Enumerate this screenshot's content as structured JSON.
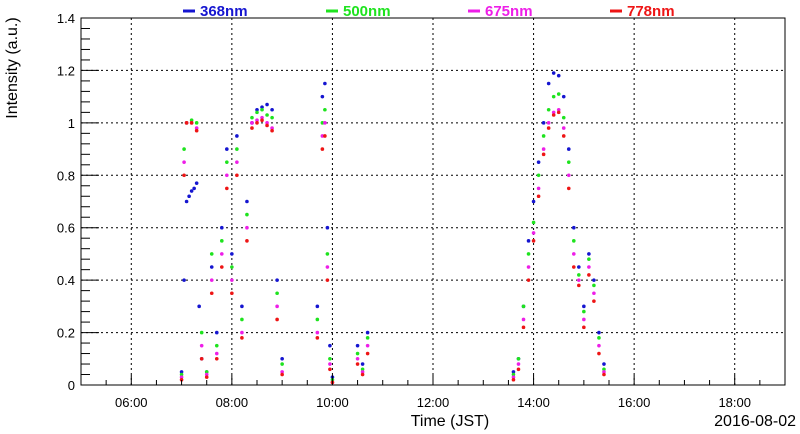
{
  "chart_data": {
    "type": "scatter",
    "title": "",
    "xlabel": "Time (JST)",
    "ylabel": "Intensity (a.u.)",
    "date_label": "2016-08-02",
    "x_unit": "hours (JST)",
    "xlim": [
      5.0,
      19.0
    ],
    "ylim": [
      0,
      1.4
    ],
    "x_tick_values": [
      6,
      8,
      10,
      12,
      14,
      16,
      18
    ],
    "x_tick_labels": [
      "06:00",
      "08:00",
      "10:00",
      "12:00",
      "14:00",
      "16:00",
      "18:00"
    ],
    "y_tick_values": [
      0,
      0.2,
      0.4,
      0.6,
      0.8,
      1,
      1.2,
      1.4
    ],
    "y_tick_labels": [
      "0",
      "0.2",
      "0.4",
      "0.6",
      "0.8",
      "1",
      "1.2",
      "1.4"
    ],
    "grid": true,
    "legend_position": "top",
    "series": [
      {
        "name": "368nm",
        "color": "#1515d0",
        "points": [
          [
            7.0,
            0.05
          ],
          [
            7.05,
            0.4
          ],
          [
            7.1,
            0.7
          ],
          [
            7.15,
            0.72
          ],
          [
            7.2,
            0.74
          ],
          [
            7.25,
            0.75
          ],
          [
            7.3,
            0.77
          ],
          [
            7.35,
            0.3
          ],
          [
            7.4,
            0.1
          ],
          [
            7.5,
            0.05
          ],
          [
            7.6,
            0.45
          ],
          [
            7.7,
            0.2
          ],
          [
            7.8,
            0.6
          ],
          [
            7.9,
            0.9
          ],
          [
            8.0,
            0.5
          ],
          [
            8.1,
            0.95
          ],
          [
            8.2,
            0.3
          ],
          [
            8.3,
            0.7
          ],
          [
            8.4,
            1.0
          ],
          [
            8.5,
            1.05
          ],
          [
            8.6,
            1.06
          ],
          [
            8.7,
            1.07
          ],
          [
            8.8,
            1.05
          ],
          [
            8.9,
            0.4
          ],
          [
            9.0,
            0.1
          ],
          [
            9.7,
            0.3
          ],
          [
            9.8,
            1.1
          ],
          [
            9.85,
            1.15
          ],
          [
            9.9,
            0.6
          ],
          [
            9.95,
            0.15
          ],
          [
            10.0,
            0.03
          ],
          [
            10.5,
            0.15
          ],
          [
            10.6,
            0.08
          ],
          [
            10.7,
            0.2
          ],
          [
            13.6,
            0.05
          ],
          [
            13.7,
            0.1
          ],
          [
            13.8,
            0.3
          ],
          [
            13.9,
            0.55
          ],
          [
            14.0,
            0.7
          ],
          [
            14.1,
            0.85
          ],
          [
            14.2,
            1.0
          ],
          [
            14.3,
            1.15
          ],
          [
            14.4,
            1.19
          ],
          [
            14.5,
            1.18
          ],
          [
            14.6,
            1.1
          ],
          [
            14.7,
            0.9
          ],
          [
            14.8,
            0.6
          ],
          [
            14.9,
            0.45
          ],
          [
            15.0,
            0.3
          ],
          [
            15.1,
            0.5
          ],
          [
            15.2,
            0.4
          ],
          [
            15.3,
            0.2
          ],
          [
            15.4,
            0.08
          ]
        ]
      },
      {
        "name": "500nm",
        "color": "#1ee31e",
        "points": [
          [
            7.0,
            0.04
          ],
          [
            7.05,
            0.9
          ],
          [
            7.1,
            1.0
          ],
          [
            7.2,
            1.01
          ],
          [
            7.3,
            1.0
          ],
          [
            7.4,
            0.2
          ],
          [
            7.5,
            0.05
          ],
          [
            7.6,
            0.5
          ],
          [
            7.7,
            0.15
          ],
          [
            7.8,
            0.55
          ],
          [
            7.9,
            0.85
          ],
          [
            8.0,
            0.45
          ],
          [
            8.1,
            0.9
          ],
          [
            8.2,
            0.25
          ],
          [
            8.3,
            0.65
          ],
          [
            8.4,
            1.02
          ],
          [
            8.5,
            1.04
          ],
          [
            8.6,
            1.05
          ],
          [
            8.7,
            1.03
          ],
          [
            8.8,
            1.02
          ],
          [
            8.9,
            0.35
          ],
          [
            9.0,
            0.08
          ],
          [
            9.7,
            0.25
          ],
          [
            9.8,
            1.0
          ],
          [
            9.85,
            1.05
          ],
          [
            9.9,
            0.5
          ],
          [
            9.95,
            0.1
          ],
          [
            10.0,
            0.02
          ],
          [
            10.5,
            0.12
          ],
          [
            10.6,
            0.06
          ],
          [
            10.7,
            0.18
          ],
          [
            13.6,
            0.04
          ],
          [
            13.7,
            0.1
          ],
          [
            13.8,
            0.3
          ],
          [
            13.9,
            0.5
          ],
          [
            14.0,
            0.62
          ],
          [
            14.1,
            0.8
          ],
          [
            14.2,
            0.95
          ],
          [
            14.3,
            1.05
          ],
          [
            14.4,
            1.1
          ],
          [
            14.5,
            1.11
          ],
          [
            14.6,
            1.02
          ],
          [
            14.7,
            0.85
          ],
          [
            14.8,
            0.55
          ],
          [
            14.9,
            0.42
          ],
          [
            15.0,
            0.28
          ],
          [
            15.1,
            0.48
          ],
          [
            15.2,
            0.38
          ],
          [
            15.3,
            0.18
          ],
          [
            15.4,
            0.06
          ]
        ]
      },
      {
        "name": "675nm",
        "color": "#ee1ee8",
        "points": [
          [
            7.0,
            0.03
          ],
          [
            7.05,
            0.85
          ],
          [
            7.1,
            1.0
          ],
          [
            7.2,
            1.0
          ],
          [
            7.3,
            0.98
          ],
          [
            7.4,
            0.15
          ],
          [
            7.5,
            0.04
          ],
          [
            7.6,
            0.4
          ],
          [
            7.7,
            0.12
          ],
          [
            7.8,
            0.5
          ],
          [
            7.9,
            0.8
          ],
          [
            8.0,
            0.4
          ],
          [
            8.1,
            0.85
          ],
          [
            8.2,
            0.2
          ],
          [
            8.3,
            0.6
          ],
          [
            8.4,
            1.0
          ],
          [
            8.5,
            1.01
          ],
          [
            8.6,
            1.02
          ],
          [
            8.7,
            1.0
          ],
          [
            8.8,
            0.98
          ],
          [
            8.9,
            0.3
          ],
          [
            9.0,
            0.05
          ],
          [
            9.7,
            0.2
          ],
          [
            9.8,
            0.95
          ],
          [
            9.85,
            1.0
          ],
          [
            9.9,
            0.45
          ],
          [
            9.95,
            0.08
          ],
          [
            10.0,
            0.01
          ],
          [
            10.5,
            0.1
          ],
          [
            10.6,
            0.05
          ],
          [
            10.7,
            0.15
          ],
          [
            13.6,
            0.03
          ],
          [
            13.7,
            0.08
          ],
          [
            13.8,
            0.25
          ],
          [
            13.9,
            0.45
          ],
          [
            14.0,
            0.58
          ],
          [
            14.1,
            0.75
          ],
          [
            14.2,
            0.9
          ],
          [
            14.3,
            1.0
          ],
          [
            14.4,
            1.04
          ],
          [
            14.5,
            1.05
          ],
          [
            14.6,
            0.98
          ],
          [
            14.7,
            0.8
          ],
          [
            14.8,
            0.5
          ],
          [
            14.9,
            0.4
          ],
          [
            15.0,
            0.25
          ],
          [
            15.1,
            0.45
          ],
          [
            15.2,
            0.35
          ],
          [
            15.3,
            0.15
          ],
          [
            15.4,
            0.05
          ]
        ]
      },
      {
        "name": "778nm",
        "color": "#ee1515",
        "points": [
          [
            7.0,
            0.02
          ],
          [
            7.05,
            0.8
          ],
          [
            7.1,
            1.0
          ],
          [
            7.2,
            1.0
          ],
          [
            7.3,
            0.97
          ],
          [
            7.4,
            0.1
          ],
          [
            7.5,
            0.03
          ],
          [
            7.6,
            0.35
          ],
          [
            7.7,
            0.1
          ],
          [
            7.8,
            0.45
          ],
          [
            7.9,
            0.75
          ],
          [
            8.0,
            0.35
          ],
          [
            8.1,
            0.8
          ],
          [
            8.2,
            0.18
          ],
          [
            8.3,
            0.55
          ],
          [
            8.4,
            0.98
          ],
          [
            8.5,
            1.0
          ],
          [
            8.6,
            1.01
          ],
          [
            8.7,
            0.99
          ],
          [
            8.8,
            0.97
          ],
          [
            8.9,
            0.25
          ],
          [
            9.0,
            0.04
          ],
          [
            9.7,
            0.18
          ],
          [
            9.8,
            0.9
          ],
          [
            9.85,
            0.95
          ],
          [
            9.9,
            0.4
          ],
          [
            9.95,
            0.06
          ],
          [
            10.0,
            0.01
          ],
          [
            10.5,
            0.08
          ],
          [
            10.6,
            0.04
          ],
          [
            10.7,
            0.12
          ],
          [
            13.6,
            0.02
          ],
          [
            13.7,
            0.06
          ],
          [
            13.8,
            0.22
          ],
          [
            13.9,
            0.4
          ],
          [
            14.0,
            0.55
          ],
          [
            14.1,
            0.72
          ],
          [
            14.2,
            0.88
          ],
          [
            14.3,
            0.98
          ],
          [
            14.4,
            1.03
          ],
          [
            14.5,
            1.04
          ],
          [
            14.6,
            0.95
          ],
          [
            14.7,
            0.75
          ],
          [
            14.8,
            0.45
          ],
          [
            14.9,
            0.38
          ],
          [
            15.0,
            0.22
          ],
          [
            15.1,
            0.42
          ],
          [
            15.2,
            0.32
          ],
          [
            15.3,
            0.12
          ],
          [
            15.4,
            0.04
          ]
        ]
      }
    ]
  }
}
